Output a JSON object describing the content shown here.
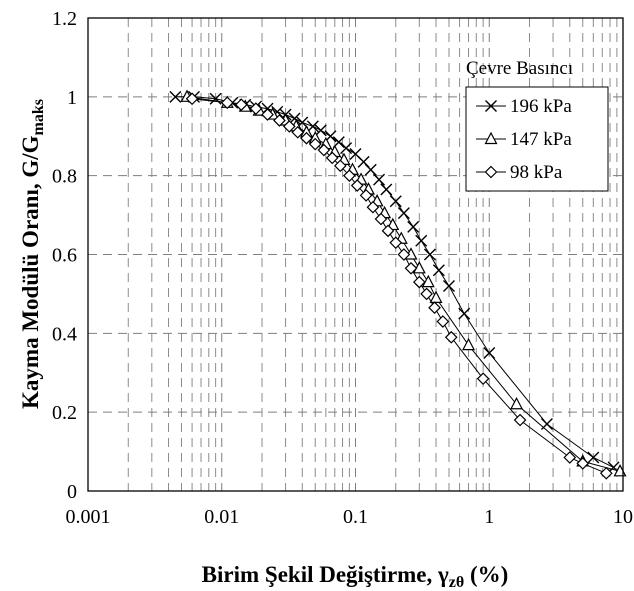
{
  "chart_data": {
    "type": "scatter",
    "xscale": "log",
    "xlim": [
      0.001,
      10
    ],
    "ylim": [
      0,
      1.2
    ],
    "x_ticks": [
      "0.001",
      "0.01",
      "0.1",
      "1",
      "10"
    ],
    "y_ticks": [
      "0",
      "0.2",
      "0.4",
      "0.6",
      "0.8",
      "1",
      "1.2"
    ],
    "xlabel_main": "Birim Şekil Değiştirme, γ",
    "xlabel_sub": "zθ",
    "xlabel_end": " (%)",
    "ylabel_main": "Kayma Modülü Oranı, G/G",
    "ylabel_sub": "maks",
    "grid": true,
    "legend": {
      "title": "Çevre Basıncı",
      "placement": "top-right"
    },
    "series": [
      {
        "name": "196 kPa",
        "marker": "x",
        "points": [
          [
            0.0045,
            1.0
          ],
          [
            0.0062,
            1.0
          ],
          [
            0.009,
            0.995
          ],
          [
            0.012,
            0.985
          ],
          [
            0.015,
            0.98
          ],
          [
            0.018,
            0.975
          ],
          [
            0.022,
            0.97
          ],
          [
            0.026,
            0.962
          ],
          [
            0.03,
            0.955
          ],
          [
            0.035,
            0.945
          ],
          [
            0.04,
            0.935
          ],
          [
            0.048,
            0.925
          ],
          [
            0.055,
            0.915
          ],
          [
            0.065,
            0.9
          ],
          [
            0.075,
            0.885
          ],
          [
            0.085,
            0.87
          ],
          [
            0.1,
            0.855
          ],
          [
            0.115,
            0.835
          ],
          [
            0.13,
            0.815
          ],
          [
            0.15,
            0.79
          ],
          [
            0.17,
            0.765
          ],
          [
            0.2,
            0.735
          ],
          [
            0.23,
            0.705
          ],
          [
            0.27,
            0.67
          ],
          [
            0.31,
            0.635
          ],
          [
            0.36,
            0.6
          ],
          [
            0.42,
            0.56
          ],
          [
            0.5,
            0.52
          ],
          [
            0.65,
            0.45
          ],
          [
            1.0,
            0.35
          ],
          [
            2.7,
            0.17
          ],
          [
            6.0,
            0.085
          ],
          [
            8.5,
            0.06
          ]
        ]
      },
      {
        "name": "147 kPa",
        "marker": "triangle",
        "points": [
          [
            0.0055,
            1.0
          ],
          [
            0.011,
            0.985
          ],
          [
            0.015,
            0.975
          ],
          [
            0.019,
            0.965
          ],
          [
            0.024,
            0.955
          ],
          [
            0.03,
            0.94
          ],
          [
            0.036,
            0.925
          ],
          [
            0.043,
            0.91
          ],
          [
            0.05,
            0.895
          ],
          [
            0.06,
            0.88
          ],
          [
            0.07,
            0.86
          ],
          [
            0.082,
            0.84
          ],
          [
            0.095,
            0.815
          ],
          [
            0.11,
            0.79
          ],
          [
            0.125,
            0.765
          ],
          [
            0.145,
            0.735
          ],
          [
            0.165,
            0.705
          ],
          [
            0.19,
            0.675
          ],
          [
            0.22,
            0.64
          ],
          [
            0.26,
            0.6
          ],
          [
            0.3,
            0.565
          ],
          [
            0.35,
            0.53
          ],
          [
            0.4,
            0.49
          ],
          [
            0.7,
            0.37
          ],
          [
            1.6,
            0.22
          ],
          [
            5.0,
            0.075
          ],
          [
            9.5,
            0.05
          ]
        ]
      },
      {
        "name": "98 kPa",
        "marker": "diamond",
        "points": [
          [
            0.006,
            0.995
          ],
          [
            0.011,
            0.985
          ],
          [
            0.014,
            0.98
          ],
          [
            0.018,
            0.97
          ],
          [
            0.022,
            0.955
          ],
          [
            0.027,
            0.94
          ],
          [
            0.032,
            0.925
          ],
          [
            0.037,
            0.91
          ],
          [
            0.043,
            0.895
          ],
          [
            0.05,
            0.88
          ],
          [
            0.058,
            0.865
          ],
          [
            0.067,
            0.845
          ],
          [
            0.077,
            0.825
          ],
          [
            0.09,
            0.8
          ],
          [
            0.103,
            0.775
          ],
          [
            0.12,
            0.75
          ],
          [
            0.135,
            0.72
          ],
          [
            0.155,
            0.69
          ],
          [
            0.175,
            0.66
          ],
          [
            0.2,
            0.63
          ],
          [
            0.23,
            0.6
          ],
          [
            0.26,
            0.565
          ],
          [
            0.3,
            0.53
          ],
          [
            0.34,
            0.5
          ],
          [
            0.39,
            0.465
          ],
          [
            0.45,
            0.43
          ],
          [
            0.52,
            0.39
          ],
          [
            0.9,
            0.285
          ],
          [
            1.7,
            0.18
          ],
          [
            4.0,
            0.085
          ],
          [
            5.0,
            0.07
          ],
          [
            7.5,
            0.045
          ]
        ]
      }
    ]
  }
}
